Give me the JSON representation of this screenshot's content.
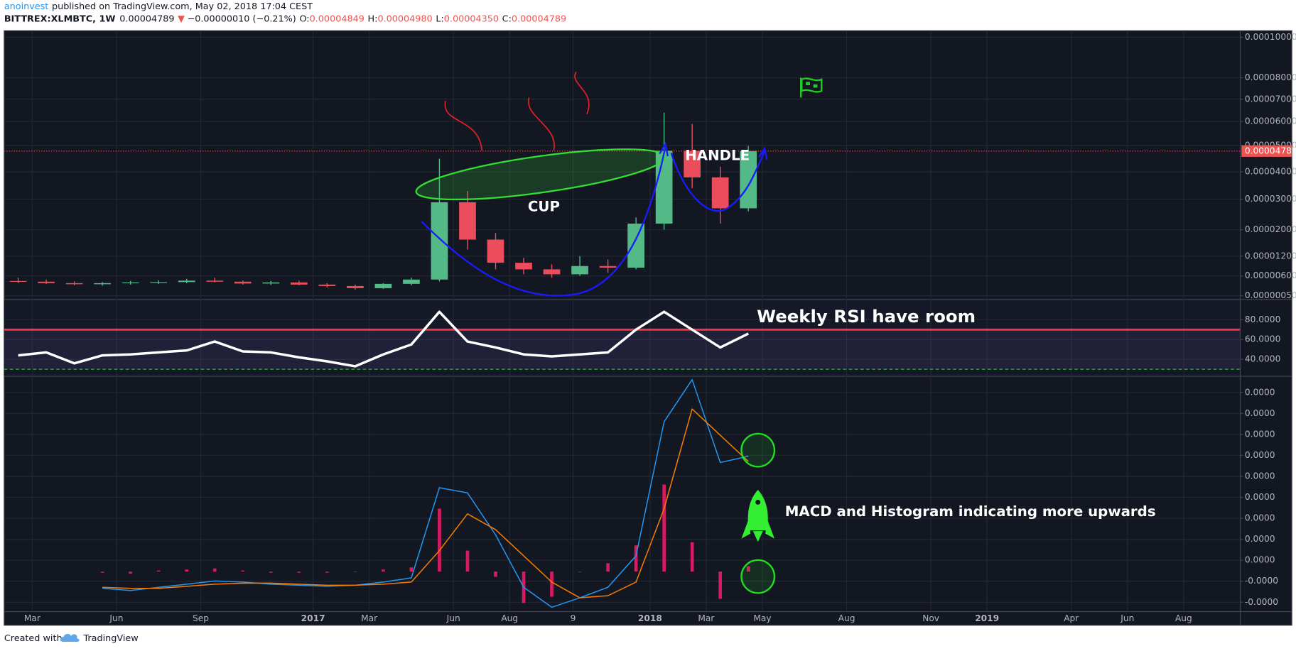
{
  "header": {
    "author": "anoinvest",
    "published": "published on TradingView.com, May 02, 2018 17:04 CEST",
    "symbol": "BITTREX:XLMBTC, 1W",
    "last": "0.00004789",
    "change_arrow": "▼",
    "change": "−0.00000010 (−0.21%)",
    "open_label": "O:",
    "open": "0.00004849",
    "high_label": "H:",
    "high": "0.00004980",
    "low_label": "L:",
    "low": "0.00004350",
    "close_label": "C:",
    "close": "0.00004789"
  },
  "annotations": {
    "cup": "CUP",
    "handle": "HANDLE",
    "rsi_note": "Weekly RSI have room",
    "macd_note": "MACD and Histogram indicating more upwards"
  },
  "footer": {
    "created_with": "Created with",
    "brand": "TradingView"
  },
  "chart_data": [
    {
      "type": "candlestick",
      "x": [
        "2016-02",
        "2016-03",
        "2016-04",
        "2016-05",
        "2016-06",
        "2016-07",
        "2016-08",
        "2016-09",
        "2016-10",
        "2016-11",
        "2016-12",
        "2017-01",
        "2017-02",
        "2017-03",
        "2017-04",
        "2017-05",
        "2017-06",
        "2017-07",
        "2017-08",
        "2017-09",
        "2017-10",
        "2017-11",
        "2017-12",
        "2018-01",
        "2018-02",
        "2018-03",
        "2018-04"
      ],
      "open": [
        4.6e-06,
        4.4e-06,
        4e-06,
        3.7e-06,
        4e-06,
        4.2e-06,
        4.3e-06,
        4.7e-06,
        4.4e-06,
        3.9e-06,
        4.2e-06,
        3.6e-06,
        3.2e-06,
        2.6e-06,
        3.8e-06,
        5e-06,
        2.9e-05,
        1.7e-05,
        1e-05,
        8e-06,
        6.5e-06,
        9e-06,
        8.5e-06,
        2.2e-05,
        4.8e-05,
        3.8e-05,
        2.7e-05
      ],
      "high": [
        5.5e-06,
        5e-06,
        4.5e-06,
        4.3e-06,
        4.6e-06,
        4.8e-06,
        5.2e-06,
        5.5e-06,
        4.8e-06,
        4.6e-06,
        4.7e-06,
        4e-06,
        3.6e-06,
        4e-06,
        5.5e-06,
        4.5e-05,
        3.3e-05,
        1.9e-05,
        1.15e-05,
        9.5e-06,
        1.2e-05,
        1.1e-05,
        2.4e-05,
        6.4e-05,
        5.9e-05,
        4.2e-05,
        4.98e-05
      ],
      "low": [
        4e-06,
        3.8e-06,
        3.4e-06,
        3.3e-06,
        3.6e-06,
        3.8e-06,
        4e-06,
        4.2e-06,
        3.6e-06,
        3.5e-06,
        3.4e-06,
        2.8e-06,
        2.2e-06,
        2.4e-06,
        3.4e-06,
        4.5e-06,
        1.4e-05,
        8e-06,
        6.5e-06,
        5.5e-06,
        6e-06,
        7e-06,
        8e-06,
        2e-05,
        3.4e-05,
        2.2e-05,
        2.6e-05
      ],
      "close": [
        4.4e-06,
        4e-06,
        3.7e-06,
        4e-06,
        4.2e-06,
        4.3e-06,
        4.7e-06,
        4.4e-06,
        3.9e-06,
        4.2e-06,
        3.6e-06,
        3.2e-06,
        2.6e-06,
        3.8e-06,
        5e-06,
        2.9e-05,
        1.7e-05,
        1e-05,
        8e-06,
        6.5e-06,
        9e-06,
        8.5e-06,
        2.2e-05,
        4.8e-05,
        3.8e-05,
        2.7e-05,
        4.789e-05
      ],
      "up_color": "#53b987",
      "down_color": "#eb4d5c",
      "xlim": [
        "2016-02",
        "2019-10"
      ],
      "ylim": [
        5e-07,
        0.0001
      ],
      "yticks": [
        {
          "value": 0.0001,
          "label": "0.00010000"
        },
        {
          "value": 8e-05,
          "label": "0.00008000"
        },
        {
          "value": 7e-05,
          "label": "0.00007000"
        },
        {
          "value": 6e-05,
          "label": "0.00006000"
        },
        {
          "value": 5e-05,
          "label": "0.00005000"
        },
        {
          "value": 4e-05,
          "label": "0.00004000"
        },
        {
          "value": 3e-05,
          "label": "0.00003000"
        },
        {
          "value": 2e-05,
          "label": "0.00002000"
        },
        {
          "value": 1.2e-05,
          "label": "0.00001200"
        },
        {
          "value": 6e-06,
          "label": "0.00000600"
        },
        {
          "value": 5e-07,
          "label": "0.00000050"
        }
      ],
      "last_price": {
        "value": 4.789e-05,
        "label": "0.00004789",
        "color": "#ef5350"
      },
      "grid": true
    },
    {
      "type": "line",
      "x": [
        "2016-02",
        "2016-03",
        "2016-04",
        "2016-05",
        "2016-06",
        "2016-07",
        "2016-08",
        "2016-09",
        "2016-10",
        "2016-11",
        "2016-12",
        "2017-01",
        "2017-02",
        "2017-03",
        "2017-04",
        "2017-05",
        "2017-06",
        "2017-07",
        "2017-08",
        "2017-09",
        "2017-10",
        "2017-11",
        "2017-12",
        "2018-01",
        "2018-02",
        "2018-03",
        "2018-04"
      ],
      "series": [
        {
          "color": "#ffffff",
          "values": [
            44,
            47,
            36,
            44,
            45,
            47,
            49,
            58,
            48,
            47,
            42,
            38,
            33,
            45,
            55,
            88,
            58,
            52,
            45,
            43,
            45,
            47,
            70,
            88,
            70,
            52,
            66
          ]
        }
      ],
      "bands": {
        "upper": 70,
        "lower": 30,
        "upper_color": "#f23645",
        "lower_color": "#2db52d",
        "fill": "#7e57c2"
      },
      "xlim": [
        "2016-02",
        "2019-10"
      ],
      "ylim": [
        23.3,
        100
      ],
      "yticks": [
        {
          "value": 80,
          "label": "80.0000"
        },
        {
          "value": 60,
          "label": "60.0000"
        },
        {
          "value": 40,
          "label": "40.0000"
        }
      ],
      "grid": true
    },
    {
      "type": "macd",
      "x": [
        "2016-02",
        "2016-03",
        "2016-04",
        "2016-05",
        "2016-06",
        "2016-07",
        "2016-08",
        "2016-09",
        "2016-10",
        "2016-11",
        "2016-12",
        "2017-01",
        "2017-02",
        "2017-03",
        "2017-04",
        "2017-05",
        "2017-06",
        "2017-07",
        "2017-08",
        "2017-09",
        "2017-10",
        "2017-11",
        "2017-12",
        "2018-01",
        "2018-02",
        "2018-03",
        "2018-04"
      ],
      "series": [
        {
          "color": "#2196f3",
          "values": [
            null,
            null,
            null,
            -1.6e-06,
            -1.8e-06,
            -1.5e-06,
            -1.2e-06,
            -9e-07,
            -1e-06,
            -1.2e-06,
            -1.3e-06,
            -1.4e-06,
            -1.3e-06,
            -1e-06,
            -6e-07,
            8e-06,
            7.5e-06,
            3.5e-06,
            -1.5e-06,
            -3.4e-06,
            -2.5e-06,
            -1.5e-06,
            1.5e-06,
            1.43e-05,
            1.83e-05,
            1.04e-05,
            1.1e-05
          ]
        },
        {
          "color": "#f57c00",
          "values": [
            null,
            null,
            null,
            -1.5e-06,
            -1.6e-06,
            -1.6e-06,
            -1.4e-06,
            -1.2e-06,
            -1.1e-06,
            -1.1e-06,
            -1.2e-06,
            -1.3e-06,
            -1.3e-06,
            -1.2e-06,
            -1e-06,
            2e-06,
            5.5e-06,
            4e-06,
            1.5e-06,
            -1e-06,
            -2.5e-06,
            -2.3e-06,
            -1e-06,
            6e-06,
            1.55e-05,
            1.3e-05,
            1.05e-05
          ]
        }
      ],
      "histogram": {
        "color": "#d81b60",
        "values": [
          null,
          null,
          null,
          -1e-07,
          -2e-07,
          1e-07,
          2e-07,
          3e-07,
          1e-07,
          -1e-07,
          -1e-07,
          -1e-07,
          0,
          2e-07,
          4e-07,
          6e-06,
          2e-06,
          -5e-07,
          -3e-06,
          -2.4e-06,
          0,
          8e-07,
          2.5e-06,
          8.3e-06,
          2.8e-06,
          -2.6e-06,
          5e-07
        ]
      },
      "xlim": [
        "2016-02",
        "2019-10"
      ],
      "ylim": [
        -3.78e-06,
        1.858e-05
      ],
      "yticks": [
        {
          "value": 1.708e-05,
          "label": "0.0000"
        },
        {
          "value": 1.508e-05,
          "label": "0.0000"
        },
        {
          "value": 1.308e-05,
          "label": "0.0000"
        },
        {
          "value": 1.108e-05,
          "label": "0.0000"
        },
        {
          "value": 9.08e-06,
          "label": "0.0000"
        },
        {
          "value": 7.08e-06,
          "label": "0.0000"
        },
        {
          "value": 5.08e-06,
          "label": "0.0000"
        },
        {
          "value": 3.08e-06,
          "label": "0.0000"
        },
        {
          "value": 1.08e-06,
          "label": "0.0000"
        },
        {
          "value": -9.2e-07,
          "label": "-0.0000"
        },
        {
          "value": -2.92e-06,
          "label": "-0.0000"
        }
      ],
      "xticks": [
        {
          "value": "2016-03",
          "label": "Mar"
        },
        {
          "value": "2016-06",
          "label": "Jun"
        },
        {
          "value": "2016-09",
          "label": "Sep"
        },
        {
          "value": "2017-01",
          "label": "2017"
        },
        {
          "value": "2017-03",
          "label": "Mar"
        },
        {
          "value": "2017-06",
          "label": "Jun"
        },
        {
          "value": "2017-08",
          "label": "Aug"
        },
        {
          "value": "2017-10-09",
          "label": "9"
        },
        {
          "value": "2018-01",
          "label": "2018"
        },
        {
          "value": "2018-03",
          "label": "Mar"
        },
        {
          "value": "2018-05",
          "label": "May"
        },
        {
          "value": "2018-08",
          "label": "Aug"
        },
        {
          "value": "2018-11",
          "label": "Nov"
        },
        {
          "value": "2019-01",
          "label": "2019"
        },
        {
          "value": "2019-04",
          "label": "Apr"
        },
        {
          "value": "2019-06",
          "label": "Jun"
        },
        {
          "value": "2019-08",
          "label": "Aug"
        }
      ],
      "grid": true
    }
  ]
}
